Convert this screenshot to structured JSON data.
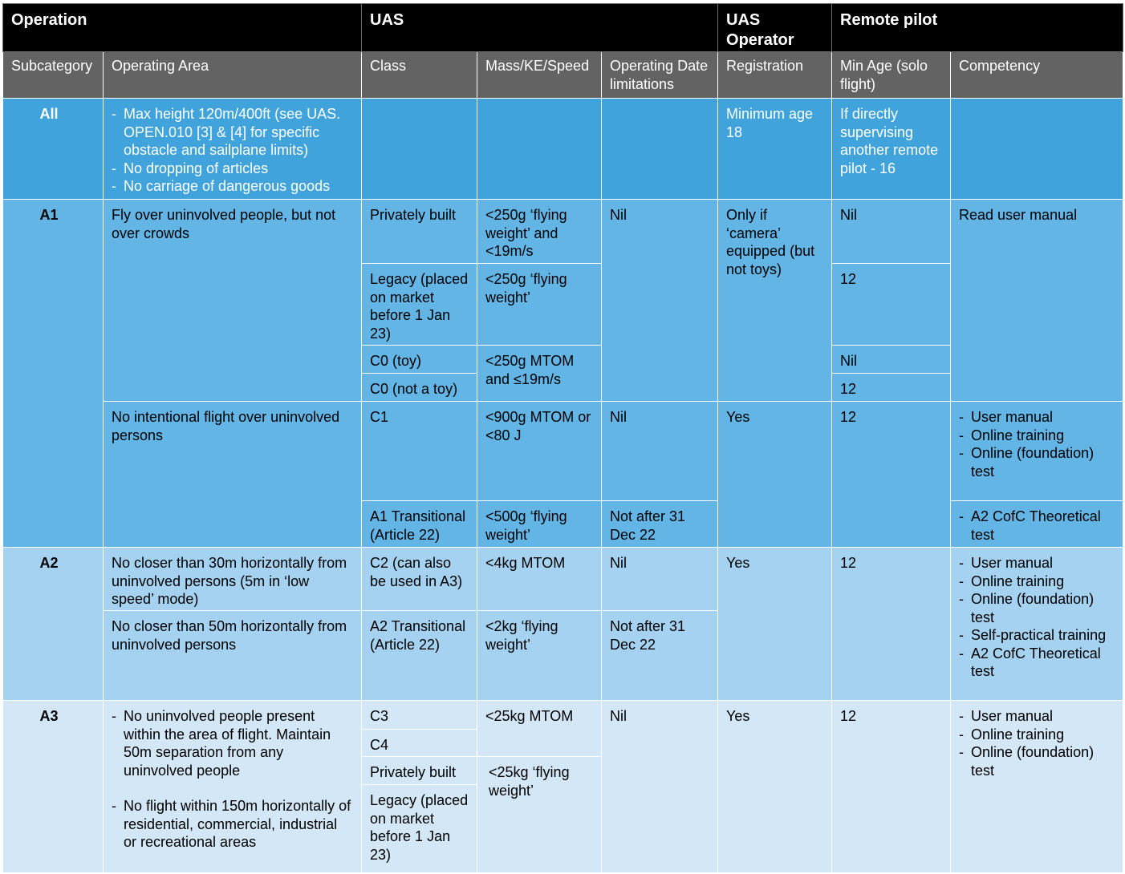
{
  "header": {
    "operation": "Operation",
    "uas": "UAS",
    "uas_operator": "UAS Operator",
    "remote_pilot": "Remote pilot"
  },
  "columns": {
    "subcategory": "Subcategory",
    "operating_area": "Operating Area",
    "class": "Class",
    "mass": "Mass/KE/Speed",
    "date_limits": "Operating Date limitations",
    "registration": "Registration",
    "min_age": "Min Age (solo flight)",
    "competency": "Competency"
  },
  "rows": {
    "all": {
      "subcategory": "All",
      "area": [
        "Max height 120m/400ft (see UAS. OPEN.010 [3] & [4] for specific obstacle and sailplane limits)",
        "No dropping of articles",
        "No carriage of dangerous goods"
      ],
      "registration": "Minimum age 18",
      "min_age": "If directly supervising another remote pilot - 16"
    },
    "a1": {
      "subcategory": "A1",
      "area_1": "Fly over uninvolved people, but not over crowds",
      "area_2": "No intentional flight over uninvolved persons",
      "class_private": "Privately built",
      "mass_private": "<250g ‘flying weight’ and <19m/s",
      "date_1": "Nil",
      "reg_1": "Only if ‘camera’ equipped (but not toys)",
      "age_private": "Nil",
      "competency_1": "Read user manual",
      "class_legacy": "Legacy (placed on market before 1 Jan 23)",
      "mass_legacy": "<250g ‘flying weight’",
      "age_legacy": "12",
      "class_c0_toy": "C0 (toy)",
      "mass_c0": "<250g MTOM and ≤19m/s",
      "age_c0_toy": "Nil",
      "class_c0_not_toy": "C0 (not a toy)",
      "age_c0_not_toy": "12",
      "class_c1": "C1",
      "mass_c1": "<900g MTOM or <80 J",
      "date_c1": "Nil",
      "reg_2": "Yes",
      "age_c1": "12",
      "competency_c1": [
        "User manual",
        "Online training",
        "Online (foundation) test"
      ],
      "class_transitional": "A1 Transitional (Article 22)",
      "mass_transitional": "<500g ‘flying weight’",
      "date_transitional": "Not after 31 Dec 22",
      "competency_transitional": [
        "A2 CofC Theoretical test"
      ]
    },
    "a2": {
      "subcategory": "A2",
      "area_c2": "No closer than 30m horizontally from uninvolved persons (5m in ‘low speed’ mode)",
      "class_c2": "C2 (can also be used in A3)",
      "mass_c2": "<4kg MTOM",
      "date_c2": "Nil",
      "registration": "Yes",
      "min_age": "12",
      "competency": [
        "User manual",
        "Online training",
        "Online (foundation) test",
        "Self-practical training",
        "A2 CofC Theoretical test"
      ],
      "area_transitional": "No closer than 50m horizontally from uninvolved persons",
      "class_transitional": "A2 Transitional (Article 22)",
      "mass_transitional": "<2kg ‘flying weight’",
      "date_transitional": "Not after 31 Dec 22"
    },
    "a3": {
      "subcategory": "A3",
      "area": [
        "No uninvolved people present within the area of flight.  Maintain 50m separation from any uninvolved people",
        "No flight within 150m horizontally of residential, commercial, industrial or recreational areas"
      ],
      "class_c3": "C3",
      "mass_c3c4": "<25kg MTOM",
      "date": "Nil",
      "registration": "Yes",
      "min_age": "12",
      "competency": [
        "User manual",
        "Online training",
        "Online (foundation) test"
      ],
      "class_c4": "C4",
      "class_private": "Privately built",
      "mass_private_legacy": "<25kg ‘flying weight’",
      "class_legacy": "Legacy (placed on market before 1 Jan 23)"
    }
  },
  "colors": {
    "header_black": "#000000",
    "header_grey": "#636363",
    "all_blue": "#41a3dc",
    "a1_blue": "#63b5e6",
    "a2_blue": "#a5d2f0",
    "a3_blue": "#d3e7f6"
  }
}
